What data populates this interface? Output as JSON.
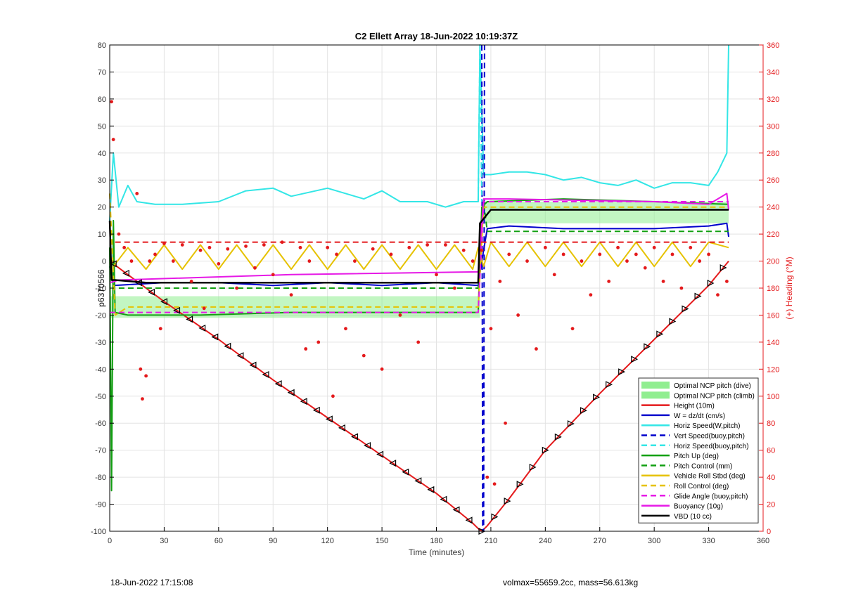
{
  "chart_data": {
    "type": "line",
    "title": "C2 Ellett Array 18-Jun-2022 10:19:37Z",
    "xlabel": "Time (minutes)",
    "ylabel_left": "p6370566",
    "ylabel_right": "(+) Heading (°M)",
    "xlim": [
      0,
      360
    ],
    "ylim_left": [
      -100,
      80
    ],
    "ylim_right": [
      0,
      360
    ],
    "xticks": [
      0,
      30,
      60,
      90,
      120,
      150,
      180,
      210,
      240,
      270,
      300,
      330,
      360
    ],
    "yticks_left": [
      -100,
      -90,
      -80,
      -70,
      -60,
      -50,
      -40,
      -30,
      -20,
      -10,
      0,
      10,
      20,
      30,
      40,
      50,
      60,
      70,
      80
    ],
    "yticks_right": [
      0,
      20,
      40,
      60,
      80,
      100,
      120,
      140,
      160,
      180,
      200,
      220,
      240,
      260,
      280,
      300,
      320,
      340,
      360
    ],
    "grid": true,
    "legend_position": "bottom-right",
    "legend": [
      {
        "label": "Optimal NCP pitch (dive)",
        "color": "#90ee90",
        "style": "patch"
      },
      {
        "label": "Optimal NCP pitch (climb)",
        "color": "#90ee90",
        "style": "patch"
      },
      {
        "label": "Height (10m)",
        "color": "#e41a1c",
        "style": "solid"
      },
      {
        "label": "W = dz/dt (cm/s)",
        "color": "#0000cc",
        "style": "solid"
      },
      {
        "label": "Horiz Speed(W,pitch)",
        "color": "#33e6e6",
        "style": "solid"
      },
      {
        "label": "Vert Speed(buoy,pitch)",
        "color": "#0000cc",
        "style": "dashed"
      },
      {
        "label": "Horiz Speed(buoy,pitch)",
        "color": "#33e6e6",
        "style": "dashed"
      },
      {
        "label": "Pitch Up (deg)",
        "color": "#12a012",
        "style": "solid"
      },
      {
        "label": "Pitch Control (mm)",
        "color": "#12a012",
        "style": "dashed"
      },
      {
        "label": "Vehicle Roll Stbd (deg)",
        "color": "#e6c200",
        "style": "solid"
      },
      {
        "label": "Roll Control (deg)",
        "color": "#e6c200",
        "style": "dashed"
      },
      {
        "label": "Glide Angle (buoy,pitch)",
        "color": "#e619e6",
        "style": "dashed"
      },
      {
        "label": "Buoyancy (10g)",
        "color": "#e619e6",
        "style": "solid"
      },
      {
        "label": "VBD (10 cc)",
        "color": "#000000",
        "style": "solid"
      }
    ],
    "bands": [
      {
        "name": "Optimal NCP pitch (dive)",
        "x": [
          0,
          204
        ],
        "y": [
          -21,
          -13
        ]
      },
      {
        "name": "Optimal NCP pitch (climb)",
        "x": [
          206,
          341
        ],
        "y": [
          14,
          22
        ]
      }
    ],
    "series": [
      {
        "name": "Height (10m)",
        "axis": "left",
        "x": [
          0,
          30,
          60,
          90,
          120,
          150,
          180,
          200,
          203,
          205,
          208,
          220,
          240,
          270,
          300,
          330,
          341
        ],
        "y": [
          0,
          -15,
          -29,
          -44,
          -58,
          -72,
          -86,
          -97,
          -99,
          -100,
          -98,
          -88,
          -70,
          -49,
          -29,
          -9,
          0
        ]
      },
      {
        "name": "W = dz/dt (cm/s)",
        "axis": "left",
        "x": [
          0,
          2,
          30,
          60,
          90,
          120,
          150,
          180,
          203,
          205,
          208,
          220,
          250,
          270,
          300,
          330,
          340,
          341
        ],
        "y": [
          -2,
          -9,
          -8,
          -8,
          -9,
          -8,
          -9,
          -8,
          -9,
          0,
          12,
          13,
          12,
          12,
          12,
          13,
          14,
          9
        ]
      },
      {
        "name": "Horiz Speed(W,pitch)",
        "axis": "left",
        "x": [
          0,
          2,
          5,
          10,
          15,
          25,
          40,
          60,
          75,
          90,
          100,
          120,
          130,
          140,
          150,
          160,
          175,
          185,
          195,
          203,
          204,
          206,
          210,
          220,
          230,
          240,
          250,
          260,
          270,
          280,
          290,
          300,
          310,
          320,
          330,
          335,
          340,
          341
        ],
        "y": [
          15,
          40,
          20,
          28,
          22,
          21,
          21,
          22,
          26,
          27,
          24,
          27,
          25,
          23,
          26,
          22,
          22,
          20,
          22,
          22,
          80,
          32,
          32,
          33,
          33,
          32,
          30,
          31,
          29,
          28,
          30,
          27,
          29,
          29,
          28,
          33,
          40,
          80
        ]
      },
      {
        "name": "Vert Speed(buoy,pitch)",
        "axis": "left",
        "x": [
          205,
          205.5,
          206,
          206.5
        ],
        "y": [
          80,
          -100,
          -100,
          80
        ]
      },
      {
        "name": "Horiz Speed(buoy,pitch)",
        "axis": "left",
        "x": [
          203,
          204,
          205
        ],
        "y": [
          22,
          80,
          22
        ]
      },
      {
        "name": "Pitch Up (deg)",
        "axis": "left",
        "x": [
          0,
          1,
          2,
          3,
          10,
          50,
          100,
          150,
          203,
          205,
          208,
          250,
          300,
          341
        ],
        "y": [
          5,
          -85,
          15,
          -19,
          -20,
          -20,
          -19,
          -19,
          -19,
          20,
          22,
          23,
          22,
          21
        ]
      },
      {
        "name": "Pitch Control (mm)",
        "axis": "left",
        "x": [
          5,
          60,
          120,
          180,
          203,
          206,
          208,
          220,
          260,
          300,
          341
        ],
        "y": [
          -10,
          -10,
          -10,
          -10,
          -10,
          22,
          11,
          11,
          11,
          11,
          11
        ]
      },
      {
        "name": "Vehicle Roll Stbd (deg)",
        "axis": "left",
        "x": [
          2,
          10,
          20,
          30,
          40,
          50,
          60,
          70,
          80,
          90,
          100,
          110,
          120,
          130,
          140,
          150,
          160,
          170,
          180,
          190,
          200,
          203,
          206,
          210,
          220,
          230,
          240,
          250,
          260,
          270,
          280,
          290,
          300,
          310,
          320,
          330,
          341
        ],
        "y": [
          -2,
          5,
          -3,
          6,
          -3,
          6,
          -3,
          6,
          -3,
          6,
          -3,
          6,
          -3,
          6,
          -3,
          6,
          -3,
          6,
          -3,
          6,
          -3,
          5,
          -2,
          7,
          -2,
          7,
          -2,
          7,
          -2,
          7,
          -2,
          7,
          -2,
          7,
          -2,
          7,
          5
        ]
      },
      {
        "name": "Roll Control (deg)",
        "axis": "left",
        "x": [
          0,
          3,
          10,
          203,
          206,
          210,
          341
        ],
        "y": [
          25,
          -20,
          -17,
          -17,
          20,
          20,
          20
        ]
      },
      {
        "name": "Glide Angle (buoy,pitch)",
        "axis": "left",
        "x": [
          0,
          203,
          206,
          341
        ],
        "y": [
          -19,
          -19,
          22,
          22
        ]
      },
      {
        "name": "Buoyancy (10g)",
        "axis": "left",
        "x": [
          0,
          5,
          100,
          203,
          206,
          220,
          300,
          330,
          340,
          341
        ],
        "y": [
          -8,
          -7,
          -5,
          -4,
          23,
          23,
          22,
          21,
          25,
          19
        ]
      },
      {
        "name": "VBD (10 cc)",
        "axis": "left",
        "x": [
          0,
          1,
          3,
          20,
          100,
          203,
          204,
          210,
          300,
          341
        ],
        "y": [
          15,
          -7,
          -7,
          -8,
          -8,
          -8,
          14,
          19,
          19,
          19
        ]
      },
      {
        "name": "Heading reference",
        "axis": "right",
        "x": [
          3,
          203,
          206,
          341
        ],
        "y": [
          214,
          214,
          214,
          214
        ]
      }
    ],
    "heading_points": {
      "axis": "right",
      "x": [
        1,
        2,
        5,
        8,
        12,
        15,
        17,
        18,
        20,
        22,
        25,
        28,
        30,
        35,
        40,
        45,
        50,
        52,
        55,
        60,
        65,
        70,
        75,
        80,
        85,
        90,
        95,
        100,
        105,
        108,
        110,
        115,
        120,
        123,
        125,
        130,
        135,
        140,
        145,
        150,
        155,
        160,
        165,
        170,
        175,
        180,
        185,
        190,
        195,
        200,
        205,
        208,
        210,
        212,
        215,
        218,
        220,
        225,
        230,
        235,
        240,
        245,
        250,
        255,
        260,
        265,
        270,
        275,
        280,
        285,
        290,
        295,
        300,
        305,
        310,
        315,
        320,
        325,
        330,
        335,
        340
      ],
      "y": [
        318,
        290,
        220,
        210,
        200,
        250,
        120,
        98,
        115,
        200,
        205,
        150,
        213,
        200,
        212,
        185,
        208,
        165,
        210,
        198,
        209,
        180,
        211,
        195,
        212,
        190,
        214,
        175,
        210,
        135,
        200,
        140,
        210,
        100,
        205,
        150,
        200,
        130,
        209,
        120,
        205,
        160,
        210,
        140,
        212,
        190,
        212,
        180,
        208,
        200,
        208,
        40,
        150,
        35,
        185,
        80,
        205,
        160,
        200,
        135,
        210,
        190,
        205,
        150,
        200,
        175,
        205,
        185,
        210,
        200,
        205,
        195,
        210,
        185,
        205,
        180,
        210,
        200,
        205,
        175,
        185
      ]
    }
  },
  "footer": {
    "left": "18-Jun-2022 17:15:08",
    "right": "volmax=55659.2cc, mass=56.613kg"
  }
}
